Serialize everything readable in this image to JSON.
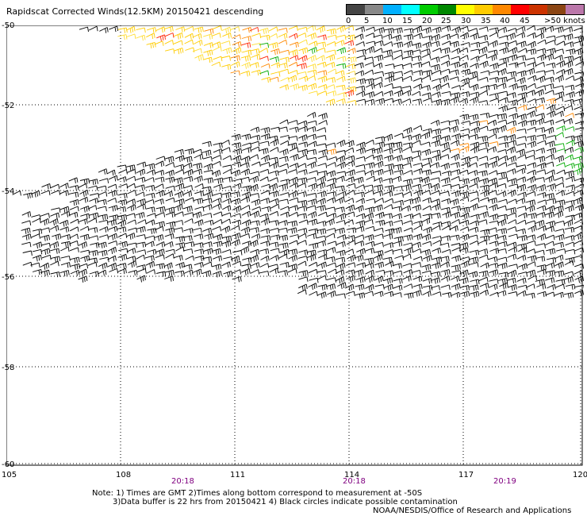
{
  "title": "Rapidscat Corrected Winds(12.5KM) 20150421 descending",
  "legend": {
    "colors": [
      "#555555",
      "#888888",
      "#00aaff",
      "#00ffff",
      "#0000cc",
      "#2255ff",
      "#00aa00",
      "#009900",
      "#ffff00",
      "#ffcc00",
      "#ff9900",
      "#ff6600",
      "#ff3300",
      "#cc0000",
      "#ff4444",
      "#993300",
      "#aa6644",
      "#ff00ff",
      "#cc00cc",
      "#9900cc",
      "#660099",
      "#330066"
    ],
    "ticks": [
      "0",
      "5",
      "10",
      "15",
      "20",
      "25",
      "30",
      "35",
      "40",
      "45",
      ">50 knots"
    ]
  },
  "map": {
    "lat_labels": [
      "-50",
      "-52",
      "-54",
      "-56",
      "-58",
      "-60"
    ],
    "lon_labels": [
      "105",
      "108",
      "111",
      "114",
      "117",
      "120"
    ],
    "time_labels": [
      "20:18",
      "20:18",
      "20:19"
    ]
  },
  "notes": [
    "Note: 1) Times are GMT 2)Times along bottom correspond to measurement at -50S",
    "3)Data buffer is 22 hrs from 20150421 4) Black circles indicate possible contamination",
    "NOAA/NESDIS/Office of Research and Applications"
  ]
}
